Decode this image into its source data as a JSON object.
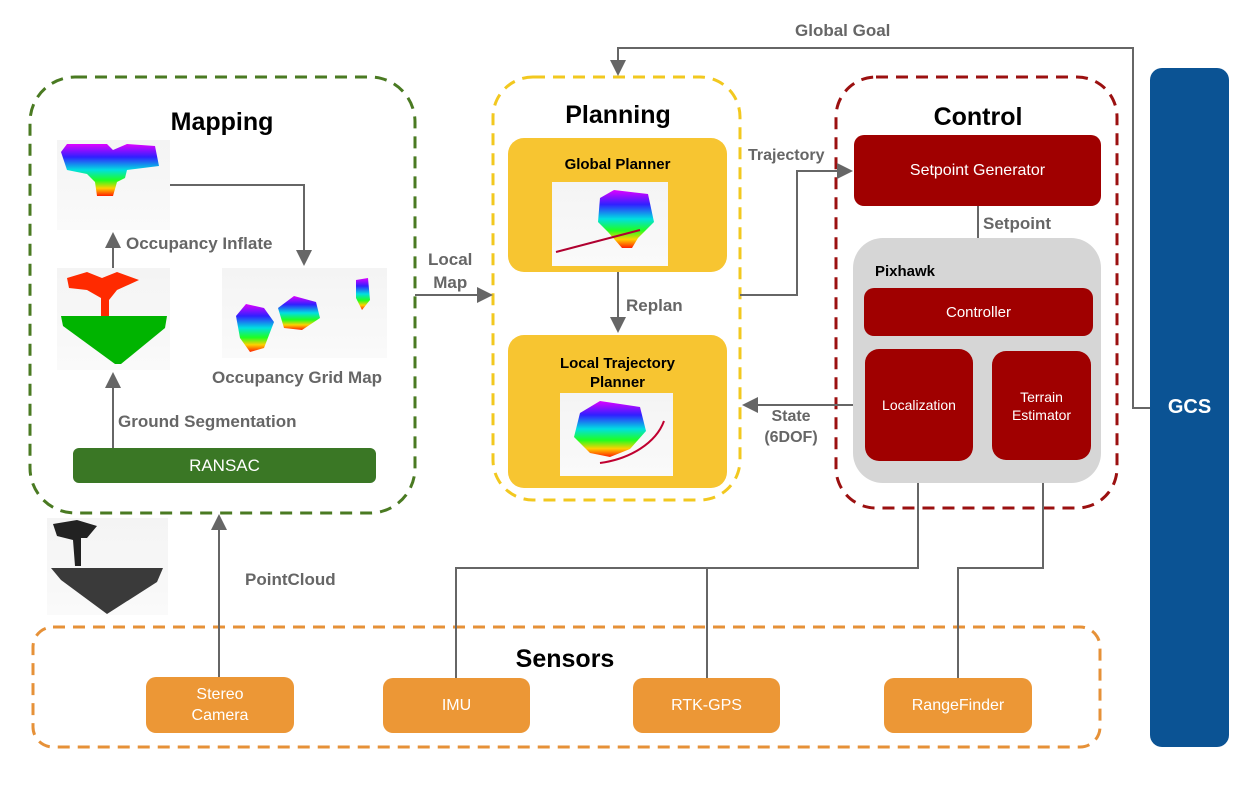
{
  "colors": {
    "mapping": "#4a7a22",
    "planning": "#f2c81f",
    "control": "#9b1010",
    "sensors": "#e69138",
    "gcs": "#0b5394",
    "pixhawk": "#d6d6d6",
    "arrow": "#666666"
  },
  "mapping": {
    "title": "Mapping",
    "occupancy_inflate": "Occupancy Inflate",
    "occupancy_grid_map": "Occupancy Grid Map",
    "ground_segmentation": "Ground Segmentation",
    "ransac": "RANSAC"
  },
  "planning": {
    "title": "Planning",
    "global_planner": "Global Planner",
    "replan": "Replan",
    "local_trajectory_planner": "Local Trajectory Planner"
  },
  "control": {
    "title": "Control",
    "setpoint_generator": "Setpoint Generator",
    "setpoint": "Setpoint",
    "pixhawk": "Pixhawk",
    "controller": "Controller",
    "localization": "Localization",
    "terrain_estimator_1": "Terrain",
    "terrain_estimator_2": "Estimator"
  },
  "edges": {
    "local_map_1": "Local",
    "local_map_2": "Map",
    "trajectory": "Trajectory",
    "state_1": "State",
    "state_2": "(6DOF)",
    "global_goal": "Global Goal",
    "pointcloud": "PointCloud"
  },
  "sensors": {
    "title": "Sensors",
    "stereo_1": "Stereo",
    "stereo_2": "Camera",
    "imu": "IMU",
    "rtk_gps": "RTK-GPS",
    "rangefinder": "RangeFinder"
  },
  "gcs": {
    "label": "GCS"
  }
}
